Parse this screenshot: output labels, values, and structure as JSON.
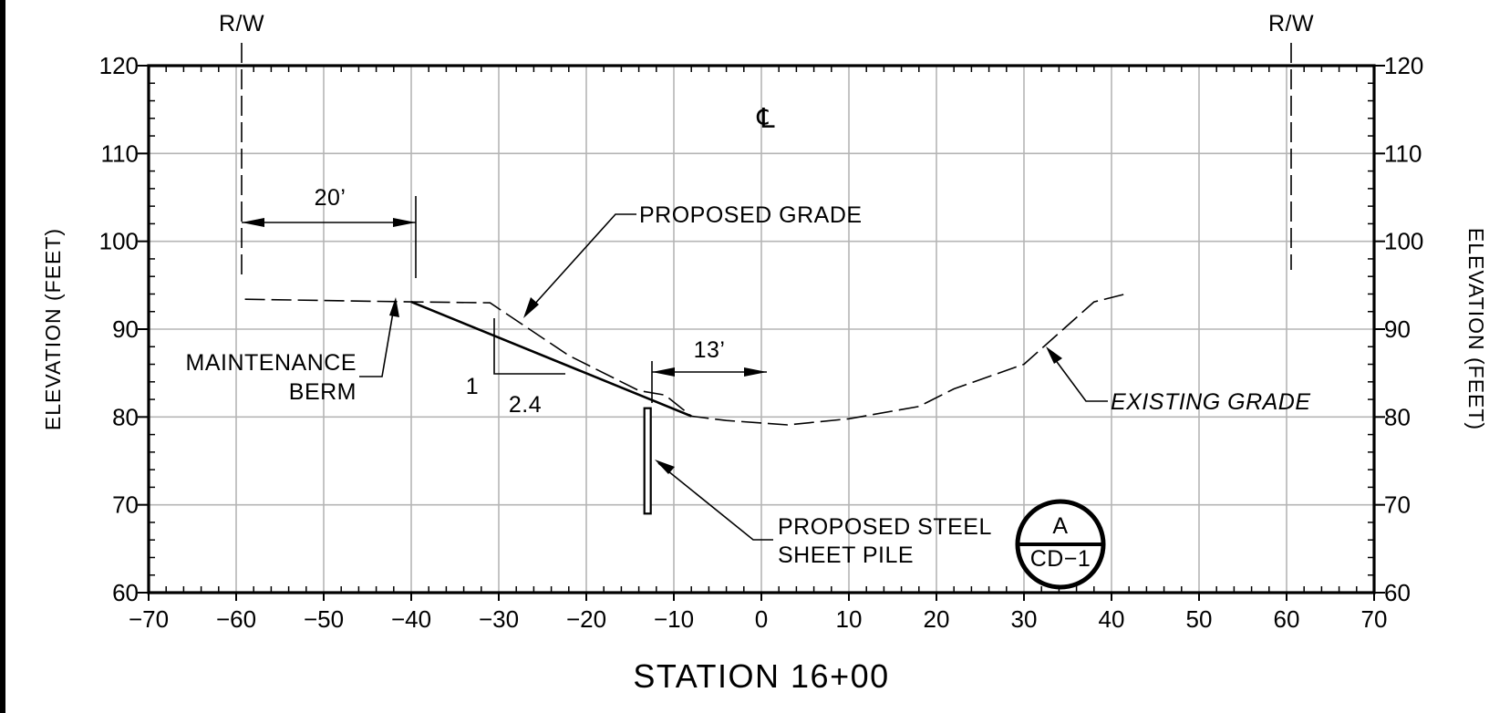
{
  "drawing": {
    "station_title": "STATION 16+00",
    "y_axis_title_left": "ELEVATION (FEET)",
    "y_axis_title_right": "ELEVATION (FEET)",
    "row_labels": [
      "R/W",
      "R/W"
    ],
    "centerline_symbol": "℄",
    "x_ticks": [
      "−70",
      "−60",
      "−50",
      "−40",
      "−30",
      "−20",
      "−10",
      "0",
      "10",
      "20",
      "30",
      "40",
      "50",
      "60",
      "70"
    ],
    "y_ticks": [
      "120",
      "110",
      "100",
      "90",
      "80",
      "70",
      "60"
    ],
    "dimension_20": "20’",
    "dimension_13": "13’",
    "slope_rise": "1",
    "slope_run": "2.4",
    "callout_proposed_grade": "PROPOSED GRADE",
    "callout_maintenance": "MAINTENANCE",
    "callout_berm": "BERM",
    "callout_existing_grade": "EXISTING GRADE",
    "callout_pile_line1": "PROPOSED STEEL",
    "callout_pile_line2": "SHEET PILE",
    "section_marker_top": "A",
    "section_marker_bottom": "CD−1"
  },
  "chart_data": {
    "type": "line",
    "xlabel": "STATION 16+00",
    "ylabel": "ELEVATION (FEET)",
    "xlim": [
      -70,
      70
    ],
    "ylim": [
      60,
      120
    ],
    "grid": true,
    "series": [
      {
        "name": "EXISTING GRADE",
        "style": "dashed",
        "points": [
          [
            -59,
            93.4
          ],
          [
            -40,
            93.1
          ],
          [
            -31,
            93.0
          ],
          [
            -22,
            87
          ],
          [
            -14,
            83
          ],
          [
            -11,
            82.5
          ],
          [
            -8,
            80.1
          ],
          [
            -4,
            79.6
          ],
          [
            3,
            79.1
          ],
          [
            10,
            79.8
          ],
          [
            18,
            81.2
          ],
          [
            22,
            83.2
          ],
          [
            30,
            86
          ],
          [
            38,
            93.1
          ],
          [
            42,
            94.1
          ]
        ]
      },
      {
        "name": "PROPOSED GRADE",
        "style": "solid",
        "points": [
          [
            -40,
            93.1
          ],
          [
            -8,
            80.1
          ]
        ]
      }
    ],
    "sheet_pile": {
      "station": -13,
      "top": 81,
      "bottom": 69
    },
    "right_of_way": [
      -60,
      60
    ],
    "slope": {
      "rise": 1,
      "run": 2.4
    },
    "dimensions": [
      {
        "label": "20’",
        "from": -60,
        "to": -40,
        "elevation": 102.2
      },
      {
        "label": "13’",
        "from": -13,
        "to": 0,
        "elevation": 84.9
      }
    ]
  }
}
